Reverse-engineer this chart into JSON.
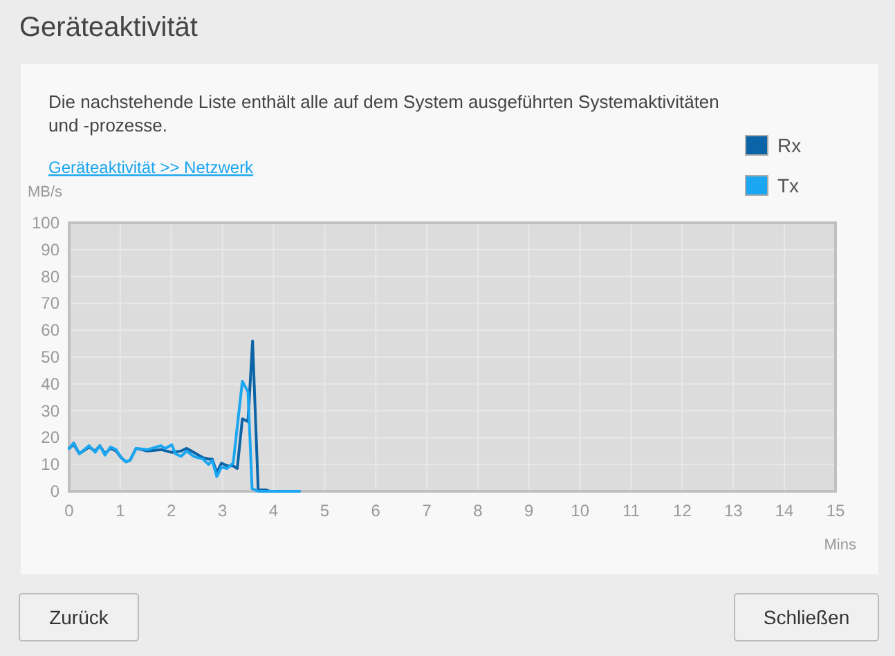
{
  "chart_data": {
    "type": "line",
    "title": "Geräteaktivität",
    "xlabel": "Mins",
    "ylabel": "MB/s",
    "annotations": [
      "Die nachstehende Liste enthält alle auf dem System ausgeführten Systemaktivitäten und -prozesse.",
      "Geräteaktivität >> Netzwerk",
      "Zurück",
      "Schließen"
    ],
    "xlim": [
      0,
      15
    ],
    "xticks": [
      0,
      1,
      2,
      3,
      4,
      5,
      6,
      7,
      8,
      9,
      10,
      11,
      12,
      13,
      14,
      15
    ],
    "ylim": [
      0,
      100
    ],
    "yticks": [
      0,
      10,
      20,
      30,
      40,
      50,
      60,
      70,
      80,
      90,
      100
    ],
    "grid": true,
    "legend": "top right",
    "marker": "none",
    "line_style": "solid",
    "series": [
      {
        "name": "Rx",
        "color": "#0b64a8",
        "x": [
          0,
          0.09,
          0.2,
          0.39,
          0.51,
          0.6,
          0.7,
          0.81,
          0.92,
          1.02,
          1.11,
          1.19,
          1.31,
          1.53,
          1.81,
          2.01,
          2.19,
          2.3,
          2.44,
          2.62,
          2.73,
          2.8,
          2.89,
          2.98,
          3.09,
          3.21,
          3.29,
          3.39,
          3.5,
          3.59,
          3.7,
          3.86,
          3.93
        ],
        "values": [
          16,
          17.5,
          14,
          16.5,
          15,
          17,
          14,
          16,
          15,
          12.5,
          11,
          11.5,
          16,
          15,
          15.5,
          14.5,
          15,
          16,
          14.5,
          12.5,
          12,
          12,
          7,
          10.5,
          9.5,
          9.5,
          8.5,
          27,
          26,
          56,
          0.5,
          0.5,
          0
        ]
      },
      {
        "name": "Tx",
        "color": "#1aa6f0",
        "x": [
          0,
          0.09,
          0.2,
          0.39,
          0.51,
          0.6,
          0.7,
          0.81,
          0.92,
          1.02,
          1.11,
          1.19,
          1.31,
          1.53,
          1.79,
          1.88,
          2.01,
          2.08,
          2.19,
          2.3,
          2.44,
          2.62,
          2.73,
          2.8,
          2.89,
          2.98,
          3.09,
          3.21,
          3.39,
          3.5,
          3.58,
          3.7,
          4.51
        ],
        "values": [
          16,
          18,
          14,
          17,
          14.5,
          17,
          13.5,
          16.5,
          15.5,
          12.5,
          11,
          11.5,
          16,
          15.5,
          17,
          16,
          17.3,
          14,
          13,
          15,
          13,
          12,
          10,
          11.5,
          5.5,
          9,
          8.5,
          10.5,
          41,
          37,
          1,
          0,
          0
        ]
      }
    ]
  }
}
